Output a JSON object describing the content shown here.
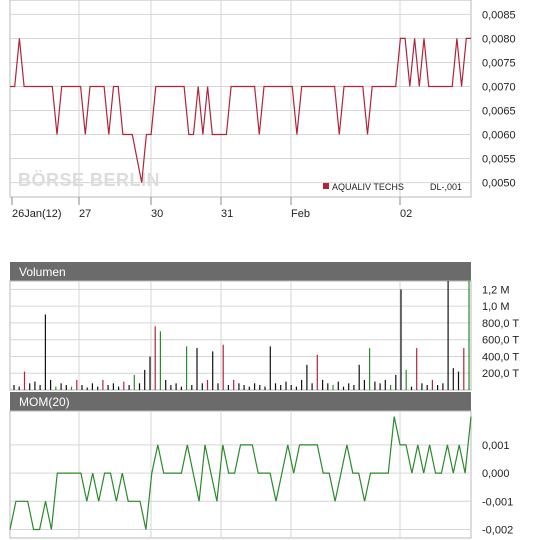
{
  "watermark": "BÖRSE BERLIN",
  "chart_data": [
    {
      "type": "line",
      "title": "",
      "series": [
        {
          "name": "AQUALIV TECHS",
          "code": "DL-,001",
          "color": "#b0243a"
        }
      ],
      "legend_label": "AQUALIV TECHS",
      "legend_code": "DL-,001",
      "legend_position": "bottom-right",
      "ylim": [
        0.0047,
        0.0088
      ],
      "y_ticks": [
        "0,0085",
        "0,0080",
        "0,0075",
        "0,0070",
        "0,0065",
        "0,0060",
        "0,0055",
        "0,0050"
      ],
      "x_labels": [
        "26Jan(12)",
        "27",
        "30",
        "31",
        "Feb",
        "02"
      ],
      "grid": true,
      "values": [
        0.007,
        0.007,
        0.008,
        0.007,
        0.007,
        0.007,
        0.007,
        0.007,
        0.007,
        0.007,
        0.006,
        0.007,
        0.007,
        0.007,
        0.007,
        0.007,
        0.006,
        0.007,
        0.007,
        0.007,
        0.007,
        0.006,
        0.007,
        0.007,
        0.006,
        0.006,
        0.006,
        0.0055,
        0.005,
        0.006,
        0.006,
        0.007,
        0.007,
        0.007,
        0.007,
        0.007,
        0.007,
        0.007,
        0.006,
        0.006,
        0.007,
        0.006,
        0.007,
        0.006,
        0.006,
        0.006,
        0.006,
        0.007,
        0.007,
        0.007,
        0.007,
        0.007,
        0.007,
        0.006,
        0.007,
        0.007,
        0.007,
        0.007,
        0.007,
        0.007,
        0.007,
        0.006,
        0.007,
        0.007,
        0.007,
        0.007,
        0.007,
        0.007,
        0.007,
        0.007,
        0.006,
        0.007,
        0.007,
        0.007,
        0.007,
        0.007,
        0.006,
        0.007,
        0.007,
        0.007,
        0.007,
        0.007,
        0.007,
        0.008,
        0.008,
        0.007,
        0.008,
        0.007,
        0.008,
        0.007,
        0.007,
        0.007,
        0.007,
        0.007,
        0.007,
        0.008,
        0.007,
        0.008,
        0.008
      ]
    },
    {
      "type": "bar",
      "title": "Volumen",
      "y_ticks": [
        "1,2 M",
        "1,0 M",
        "800,0 T",
        "600,0 T",
        "400,0 T",
        "200,0 T"
      ],
      "ylim": [
        0,
        1300000
      ],
      "colors": {
        "up": "#2a8a2a",
        "down": "#b0243a",
        "neutral": "#111111"
      },
      "bars": [
        {
          "v": 60000,
          "c": "n"
        },
        {
          "v": 40000,
          "c": "n"
        },
        {
          "v": 220000,
          "c": "d"
        },
        {
          "v": 80000,
          "c": "n"
        },
        {
          "v": 100000,
          "c": "n"
        },
        {
          "v": 60000,
          "c": "n"
        },
        {
          "v": 900000,
          "c": "n"
        },
        {
          "v": 120000,
          "c": "n"
        },
        {
          "v": 40000,
          "c": "u"
        },
        {
          "v": 80000,
          "c": "n"
        },
        {
          "v": 60000,
          "c": "n"
        },
        {
          "v": 40000,
          "c": "u"
        },
        {
          "v": 120000,
          "c": "d"
        },
        {
          "v": 60000,
          "c": "n"
        },
        {
          "v": 30000,
          "c": "n"
        },
        {
          "v": 80000,
          "c": "n"
        },
        {
          "v": 40000,
          "c": "n"
        },
        {
          "v": 120000,
          "c": "d"
        },
        {
          "v": 60000,
          "c": "n"
        },
        {
          "v": 80000,
          "c": "n"
        },
        {
          "v": 40000,
          "c": "n"
        },
        {
          "v": 100000,
          "c": "d"
        },
        {
          "v": 60000,
          "c": "n"
        },
        {
          "v": 180000,
          "c": "u"
        },
        {
          "v": 80000,
          "c": "n"
        },
        {
          "v": 240000,
          "c": "n"
        },
        {
          "v": 400000,
          "c": "n"
        },
        {
          "v": 760000,
          "c": "d"
        },
        {
          "v": 700000,
          "c": "u"
        },
        {
          "v": 120000,
          "c": "n"
        },
        {
          "v": 60000,
          "c": "n"
        },
        {
          "v": 80000,
          "c": "n"
        },
        {
          "v": 40000,
          "c": "n"
        },
        {
          "v": 520000,
          "c": "u"
        },
        {
          "v": 60000,
          "c": "n"
        },
        {
          "v": 500000,
          "c": "n"
        },
        {
          "v": 80000,
          "c": "n"
        },
        {
          "v": 120000,
          "c": "d"
        },
        {
          "v": 460000,
          "c": "n"
        },
        {
          "v": 80000,
          "c": "n"
        },
        {
          "v": 540000,
          "c": "d"
        },
        {
          "v": 60000,
          "c": "n"
        },
        {
          "v": 120000,
          "c": "d"
        },
        {
          "v": 80000,
          "c": "n"
        },
        {
          "v": 60000,
          "c": "n"
        },
        {
          "v": 40000,
          "c": "n"
        },
        {
          "v": 80000,
          "c": "n"
        },
        {
          "v": 60000,
          "c": "n"
        },
        {
          "v": 40000,
          "c": "n"
        },
        {
          "v": 520000,
          "c": "n"
        },
        {
          "v": 80000,
          "c": "n"
        },
        {
          "v": 60000,
          "c": "n"
        },
        {
          "v": 100000,
          "c": "n"
        },
        {
          "v": 60000,
          "c": "n"
        },
        {
          "v": 40000,
          "c": "n"
        },
        {
          "v": 120000,
          "c": "n"
        },
        {
          "v": 300000,
          "c": "n"
        },
        {
          "v": 80000,
          "c": "n"
        },
        {
          "v": 420000,
          "c": "d"
        },
        {
          "v": 120000,
          "c": "n"
        },
        {
          "v": 80000,
          "c": "n"
        },
        {
          "v": 60000,
          "c": "u"
        },
        {
          "v": 100000,
          "c": "n"
        },
        {
          "v": 40000,
          "c": "n"
        },
        {
          "v": 80000,
          "c": "n"
        },
        {
          "v": 60000,
          "c": "n"
        },
        {
          "v": 300000,
          "c": "n"
        },
        {
          "v": 120000,
          "c": "n"
        },
        {
          "v": 500000,
          "c": "u"
        },
        {
          "v": 100000,
          "c": "n"
        },
        {
          "v": 80000,
          "c": "n"
        },
        {
          "v": 120000,
          "c": "n"
        },
        {
          "v": 60000,
          "c": "u"
        },
        {
          "v": 180000,
          "c": "n"
        },
        {
          "v": 1200000,
          "c": "n"
        },
        {
          "v": 240000,
          "c": "u"
        },
        {
          "v": 40000,
          "c": "n"
        },
        {
          "v": 500000,
          "c": "d"
        },
        {
          "v": 80000,
          "c": "n"
        },
        {
          "v": 60000,
          "c": "n"
        },
        {
          "v": 120000,
          "c": "d"
        },
        {
          "v": 60000,
          "c": "n"
        },
        {
          "v": 80000,
          "c": "n"
        },
        {
          "v": 1300000,
          "c": "n"
        },
        {
          "v": 260000,
          "c": "n"
        },
        {
          "v": 220000,
          "c": "n"
        },
        {
          "v": 500000,
          "c": "d"
        },
        {
          "v": 1300000,
          "c": "u"
        }
      ]
    },
    {
      "type": "line",
      "title": "MOM(20)",
      "y_ticks": [
        "0,001",
        "0,000",
        "-0,001",
        "-0,002"
      ],
      "ylim": [
        -0.0023,
        0.0022
      ],
      "color": "#2a8a2a",
      "values": [
        -0.002,
        -0.001,
        -0.001,
        -0.001,
        -0.002,
        -0.002,
        -0.001,
        -0.002,
        0.0,
        0.0,
        0.0,
        0.0,
        0.0,
        -0.001,
        0.0,
        -0.001,
        0.0,
        0.0,
        -0.001,
        0.0,
        -0.001,
        -0.001,
        -0.001,
        -0.002,
        0.0,
        0.001,
        0.0,
        0.0,
        0.0,
        0.0,
        0.001,
        0.0,
        -0.001,
        0.001,
        0.0,
        -0.001,
        0.001,
        0.0,
        0.0,
        0.001,
        0.001,
        0.001,
        0.0,
        0.0,
        0.0,
        -0.001,
        0.0,
        0.001,
        0.0,
        0.001,
        0.001,
        0.001,
        0.001,
        0.0,
        0.0,
        -0.001,
        0.0,
        0.001,
        0.0,
        0.0,
        -0.001,
        0.0,
        0.0,
        0.0,
        0.0,
        0.002,
        0.001,
        0.001,
        0.0,
        0.001,
        0.0,
        0.001,
        0.0,
        0.0,
        0.001,
        0.0,
        0.001,
        0.0,
        0.002
      ]
    }
  ]
}
